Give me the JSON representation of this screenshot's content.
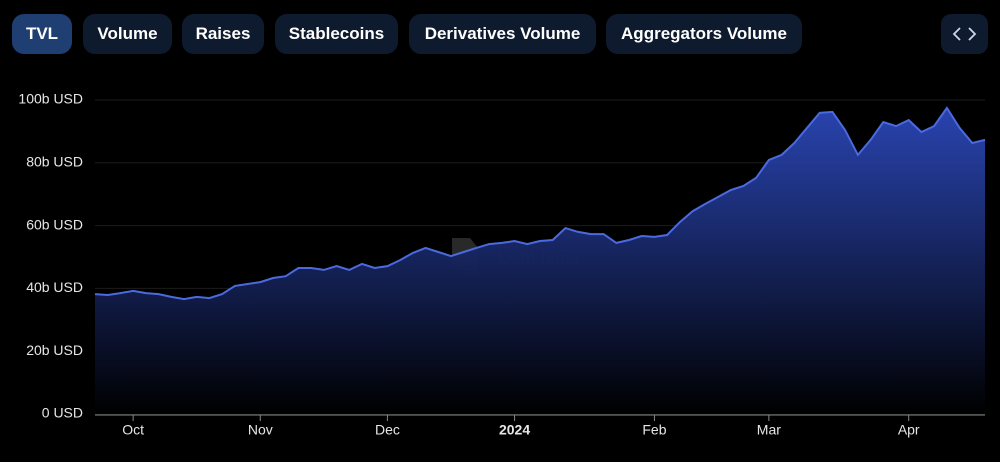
{
  "tabs": [
    "TVL",
    "Volume",
    "Raises",
    "Stablecoins",
    "Derivatives Volume",
    "Aggregators Volume"
  ],
  "active_tab": 0,
  "watermark": "DefiLlama",
  "chart_data": {
    "type": "area",
    "color": "#4b6ae0",
    "grid": true,
    "categories": [
      null,
      null,
      null,
      "Oct",
      null,
      null,
      null,
      null,
      null,
      null,
      null,
      null,
      null,
      "Nov",
      null,
      null,
      null,
      null,
      null,
      null,
      null,
      null,
      null,
      "Dec",
      null,
      null,
      null,
      null,
      null,
      null,
      null,
      null,
      null,
      "2024",
      null,
      null,
      null,
      null,
      null,
      null,
      null,
      null,
      null,
      null,
      "Feb",
      null,
      null,
      null,
      null,
      null,
      null,
      null,
      null,
      "Mar",
      null,
      null,
      null,
      null,
      null,
      null,
      null,
      null,
      null,
      null,
      "Apr",
      null,
      null,
      null,
      null,
      null,
      null
    ],
    "values": [
      38200000000.0,
      37900000000.0,
      38500000000.0,
      39200000000.0,
      38500000000.0,
      38200000000.0,
      37300000000.0,
      36600000000.0,
      37300000000.0,
      36900000000.0,
      38200000000.0,
      40800000000.0,
      41400000000.0,
      42000000000.0,
      43300000000.0,
      43900000000.0,
      46500000000.0,
      46500000000.0,
      45900000000.0,
      47100000000.0,
      45900000000.0,
      47800000000.0,
      46500000000.0,
      47100000000.0,
      49000000000.0,
      51300000000.0,
      52900000000.0,
      51600000000.0,
      50300000000.0,
      51600000000.0,
      52900000000.0,
      54100000000.0,
      54500000000.0,
      55100000000.0,
      54100000000.0,
      55100000000.0,
      55400000000.0,
      59200000000.0,
      58000000000.0,
      57300000000.0,
      57300000000.0,
      54500000000.0,
      55400000000.0,
      56700000000.0,
      56400000000.0,
      57000000000.0,
      61100000000.0,
      64600000000.0,
      66900000000.0,
      69100000000.0,
      71300000000.0,
      72600000000.0,
      75200000000.0,
      80900000000.0,
      82500000000.0,
      86300000000.0,
      91100000000.0,
      95900000000.0,
      96200000000.0,
      90400000000.0,
      82500000000.0,
      87300000000.0,
      93000000000.0,
      91700000000.0,
      93600000000.0,
      89800000000.0,
      91700000000.0,
      97500000000.0,
      91100000000.0,
      86300000000.0,
      87300000000.0
    ],
    "ylim": [
      0,
      100000000000.0
    ],
    "yticks": [
      {
        "value": 0,
        "label": "0 USD"
      },
      {
        "value": 20000000000.0,
        "label": "20b USD"
      },
      {
        "value": 40000000000.0,
        "label": "40b USD"
      },
      {
        "value": 60000000000.0,
        "label": "60b USD"
      },
      {
        "value": 80000000000.0,
        "label": "80b USD"
      },
      {
        "value": 100000000000.0,
        "label": "100b USD"
      }
    ]
  }
}
